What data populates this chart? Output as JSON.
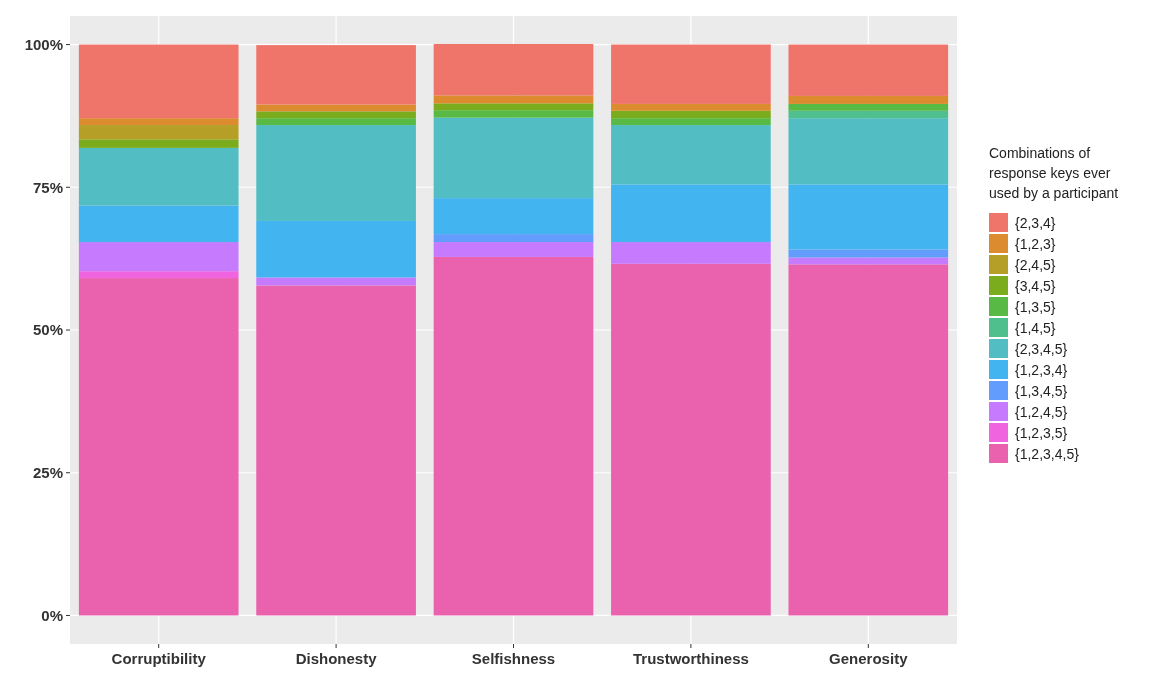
{
  "chart_data": {
    "type": "bar",
    "stacked": true,
    "legend_title": "Combinations of response keys ever used by a participant",
    "categories": [
      "Corruptibility",
      "Dishonesty",
      "Selfishness",
      "Trustworthiness",
      "Generosity"
    ],
    "ylim": [
      -5,
      105
    ],
    "yticks": [
      {
        "value": 0,
        "label": "0%"
      },
      {
        "value": 25,
        "label": "25%"
      },
      {
        "value": 50,
        "label": "50%"
      },
      {
        "value": 75,
        "label": "75%"
      },
      {
        "value": 100,
        "label": "100%"
      }
    ],
    "grid": true,
    "legend": "right",
    "series": [
      {
        "name": "{1,2,3,4,5}",
        "color": "#ea62ae",
        "values": [
          59.1,
          57.8,
          62.8,
          61.6,
          61.5
        ]
      },
      {
        "name": "{1,2,3,5}",
        "color": "#f064e0",
        "values": [
          1.2,
          0,
          0,
          0,
          0
        ]
      },
      {
        "name": "{1,2,4,5}",
        "color": "#c67afd",
        "values": [
          5.1,
          1.4,
          2.6,
          3.8,
          1.2
        ]
      },
      {
        "name": "{1,3,4,5}",
        "color": "#629cfc",
        "values": [
          0,
          0,
          1.4,
          0,
          1.4
        ]
      },
      {
        "name": "{1,2,3,4}",
        "color": "#42b4f0",
        "values": [
          6.4,
          9.9,
          6.3,
          10.1,
          11.4
        ]
      },
      {
        "name": "{2,3,4,5}",
        "color": "#52bec3",
        "values": [
          10.1,
          16.8,
          14.1,
          10.4,
          11.6
        ]
      },
      {
        "name": "{1,4,5}",
        "color": "#4fbf8e",
        "values": [
          0,
          0,
          0,
          0,
          1.3
        ]
      },
      {
        "name": "{1,3,5}",
        "color": "#58b944",
        "values": [
          0,
          1.2,
          1.3,
          1.2,
          1.2
        ]
      },
      {
        "name": "{3,4,5}",
        "color": "#7bac1d",
        "values": [
          1.5,
          1.2,
          1.2,
          1.3,
          0
        ]
      },
      {
        "name": "{2,4,5}",
        "color": "#b69f26",
        "values": [
          2.5,
          0,
          0,
          0,
          0
        ]
      },
      {
        "name": "{1,2,3}",
        "color": "#dc8b2f",
        "values": [
          1.2,
          1.2,
          1.4,
          1.2,
          1.4
        ]
      },
      {
        "name": "{2,3,4}",
        "color": "#ef756b",
        "values": [
          12.9,
          10.4,
          9.0,
          10.4,
          9.0
        ]
      }
    ]
  }
}
